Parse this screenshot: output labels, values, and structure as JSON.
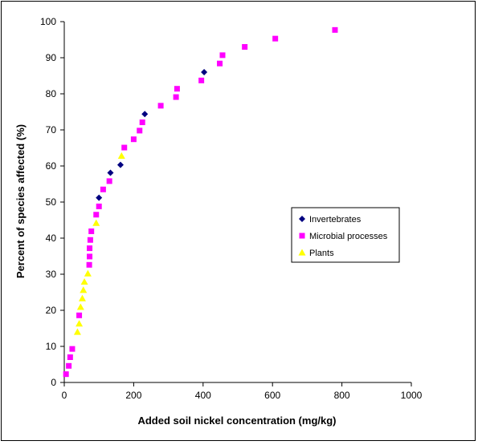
{
  "chart_data": {
    "type": "scatter",
    "title": "",
    "xlabel": "Added soil nickel concentration (mg/kg)",
    "ylabel": "Percent of species affected (%)",
    "xlim": [
      0,
      1000
    ],
    "ylim": [
      0,
      100
    ],
    "xticks": [
      0,
      200,
      400,
      600,
      800,
      1000
    ],
    "yticks": [
      0,
      10,
      20,
      30,
      40,
      50,
      60,
      70,
      80,
      90,
      100
    ],
    "grid": false,
    "legend_position": "right",
    "series": [
      {
        "name": "Invertebrates",
        "marker": "diamond",
        "color": "#000080",
        "points": [
          [
            100,
            51.2
          ],
          [
            133,
            58.1
          ],
          [
            162,
            60.3
          ],
          [
            232,
            74.4
          ],
          [
            403,
            86
          ]
        ]
      },
      {
        "name": "Microbial processes",
        "marker": "square",
        "color": "#ff00ff",
        "points": [
          [
            5,
            2.3
          ],
          [
            13,
            4.6
          ],
          [
            17,
            7
          ],
          [
            23,
            9.3
          ],
          [
            43,
            18.6
          ],
          [
            72,
            32.6
          ],
          [
            73,
            34.9
          ],
          [
            73,
            37.2
          ],
          [
            75,
            39.5
          ],
          [
            78,
            41.9
          ],
          [
            92,
            46.5
          ],
          [
            100,
            48.8
          ],
          [
            112,
            53.5
          ],
          [
            130,
            55.8
          ],
          [
            173,
            65.1
          ],
          [
            200,
            67.4
          ],
          [
            217,
            69.8
          ],
          [
            225,
            72.1
          ],
          [
            278,
            76.7
          ],
          [
            322,
            79.1
          ],
          [
            325,
            81.4
          ],
          [
            395,
            83.7
          ],
          [
            448,
            88.4
          ],
          [
            456,
            90.7
          ],
          [
            520,
            93
          ],
          [
            608,
            95.3
          ],
          [
            780,
            97.7
          ]
        ]
      },
      {
        "name": "Plants",
        "marker": "triangle",
        "color": "#ffff00",
        "points": [
          [
            38,
            14
          ],
          [
            43,
            16.3
          ],
          [
            47,
            20.9
          ],
          [
            52,
            23.3
          ],
          [
            55,
            25.6
          ],
          [
            58,
            27.9
          ],
          [
            68,
            30.2
          ],
          [
            92,
            44.2
          ],
          [
            165,
            62.8
          ]
        ]
      }
    ]
  }
}
